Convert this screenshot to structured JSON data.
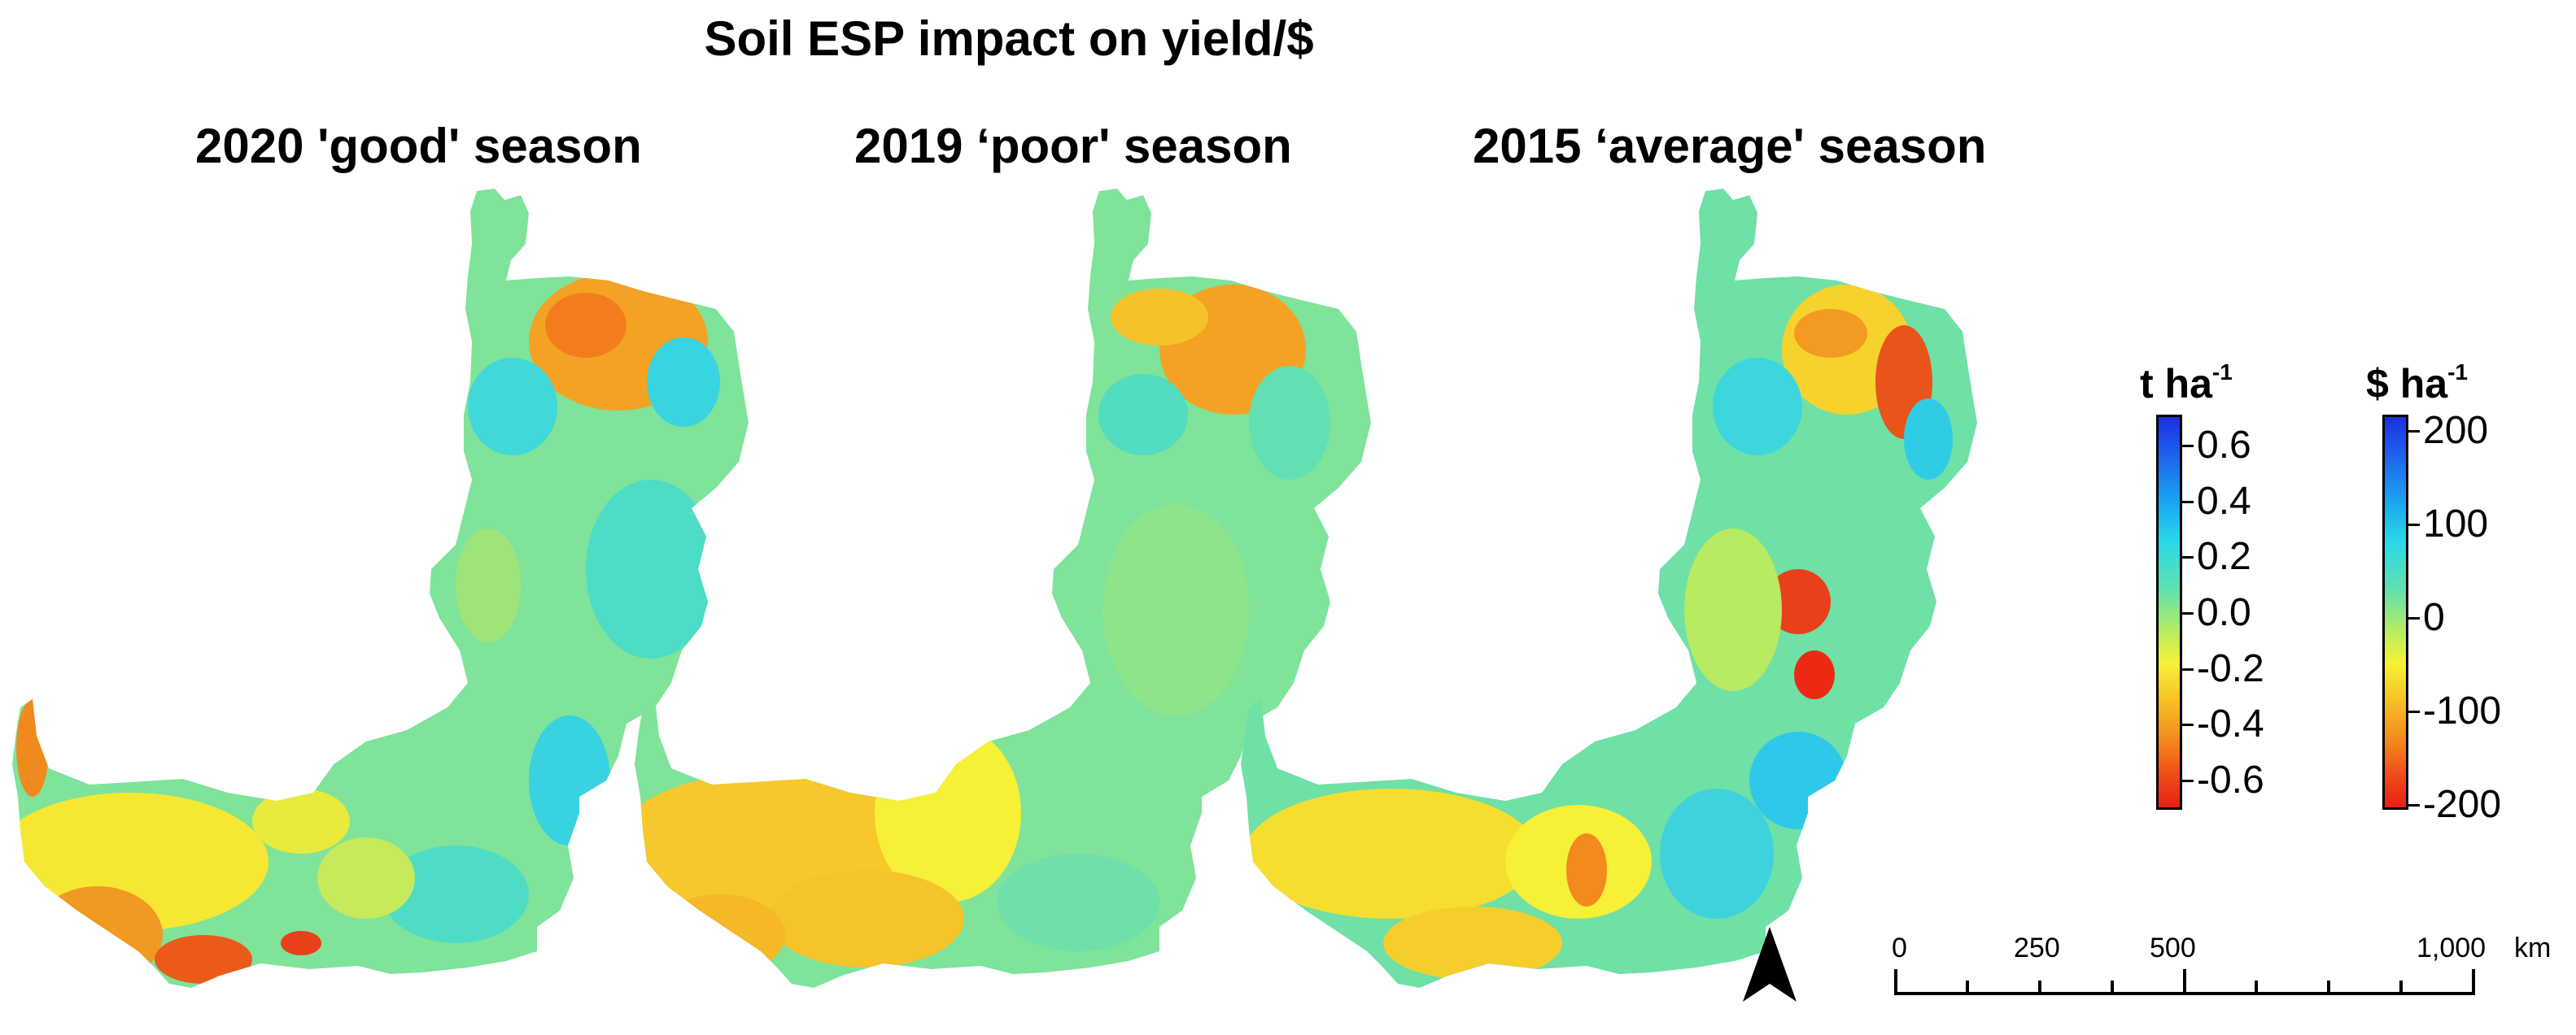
{
  "title": "Soil ESP impact on yield/$",
  "panels": [
    {
      "title": "2020 'good' season"
    },
    {
      "title": "2019 ‘poor' season"
    },
    {
      "title": "2015 ‘average' season"
    }
  ],
  "legend_yield": {
    "unit": "t ha",
    "unit_sup": "-1",
    "ticks": [
      "0.6",
      "0.4",
      "0.2",
      "0.0",
      "-0.2",
      "-0.4",
      "-0.6"
    ]
  },
  "legend_dollar": {
    "unit": "$ ha",
    "unit_sup": "-1",
    "ticks": [
      "200",
      "100",
      "0",
      "-100",
      "-200"
    ]
  },
  "scale_bar": {
    "labels": [
      "0",
      "250",
      "500",
      "1,000"
    ],
    "unit": "km"
  },
  "colors": {
    "high": "#1a2fe0",
    "mid_high": "#29d9e8",
    "neutral": "#5fe0b0",
    "mid_low": "#f6f236",
    "low_orange": "#f48e1e",
    "low": "#e81f12"
  }
}
